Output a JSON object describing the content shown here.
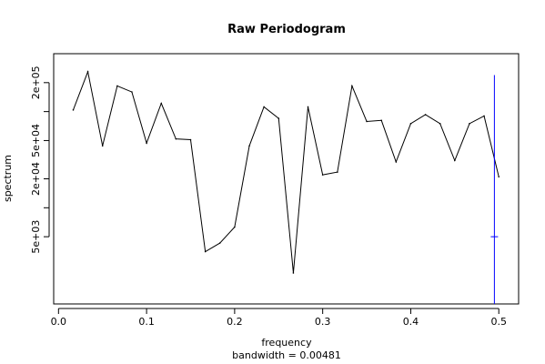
{
  "chart_data": {
    "type": "line",
    "title": "Raw Periodogram",
    "xlabel": "frequency",
    "sublabel": "bandwidth = 0.00481",
    "ylabel": "spectrum",
    "y_scale": "log",
    "xlim": [
      -0.0055,
      0.5225
    ],
    "ylim": [
      1000,
      400000
    ],
    "x_ticks": [
      {
        "value": 0.0,
        "label": "0.0"
      },
      {
        "value": 0.1,
        "label": "0.1"
      },
      {
        "value": 0.2,
        "label": "0.2"
      },
      {
        "value": 0.3,
        "label": "0.3"
      },
      {
        "value": 0.4,
        "label": "0.4"
      },
      {
        "value": 0.5,
        "label": "0.5"
      }
    ],
    "y_ticks": [
      {
        "value": 5000,
        "label": "5e+03"
      },
      {
        "value": 10000,
        "label": ""
      },
      {
        "value": 20000,
        "label": "2e+04"
      },
      {
        "value": 50000,
        "label": "5e+04"
      },
      {
        "value": 100000,
        "label": ""
      },
      {
        "value": 200000,
        "label": "2e+05"
      }
    ],
    "x": [
      0.0167,
      0.0333,
      0.05,
      0.0667,
      0.0833,
      0.1,
      0.1167,
      0.1333,
      0.15,
      0.1667,
      0.1833,
      0.2,
      0.2167,
      0.2333,
      0.25,
      0.2667,
      0.2833,
      0.3,
      0.3167,
      0.3333,
      0.35,
      0.3667,
      0.3833,
      0.4,
      0.4167,
      0.4333,
      0.45,
      0.4667,
      0.4833,
      0.5
    ],
    "y": [
      104000,
      260000,
      44000,
      185000,
      160000,
      47000,
      122000,
      52000,
      51000,
      3500,
      4300,
      6300,
      44000,
      112000,
      85000,
      2100,
      112000,
      22000,
      23500,
      185000,
      79000,
      81000,
      30000,
      75000,
      93000,
      75000,
      31000,
      75000,
      90000,
      21000
    ],
    "ci_marker": {
      "x": 0.495,
      "upper": 240000,
      "center": 5000,
      "color": "#0000ff"
    },
    "line_color": "#000000"
  }
}
